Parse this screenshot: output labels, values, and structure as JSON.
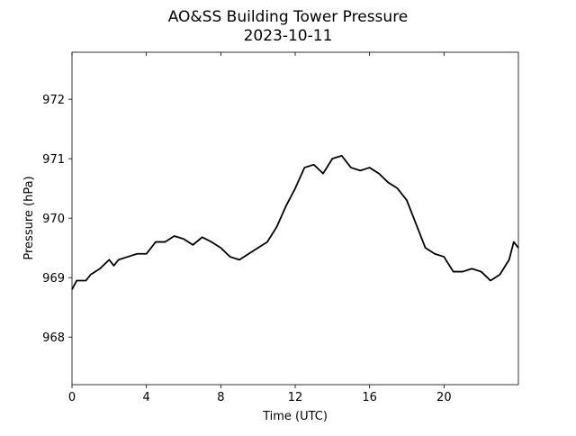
{
  "chart_data": {
    "type": "line",
    "title": "AO&SS Building Tower Pressure",
    "subtitle": "2023-10-11",
    "x_label": "Time (UTC)",
    "y_label": "Pressure (hPa)",
    "xlim": [
      0,
      24
    ],
    "xticks": [
      0,
      4,
      8,
      12,
      16,
      20
    ],
    "ylim": [
      967.2,
      972.79
    ],
    "yticks": [
      968,
      969,
      970,
      971,
      972
    ],
    "x": [
      0,
      0.25,
      0.5,
      0.75,
      1,
      1.5,
      2,
      2.25,
      2.5,
      3,
      3.5,
      4,
      4.5,
      5,
      5.5,
      6,
      6.5,
      7,
      7.5,
      8,
      8.5,
      9,
      9.5,
      10,
      10.5,
      11,
      11.5,
      12,
      12.5,
      13,
      13.5,
      14,
      14.5,
      15,
      15.5,
      16,
      16.5,
      17,
      17.5,
      18,
      18.5,
      19,
      19.5,
      20,
      20.5,
      21,
      21.5,
      22,
      22.5,
      23,
      23.5,
      23.75,
      24
    ],
    "series": [
      {
        "color": "#000000",
        "values": [
          968.8,
          968.95,
          968.95,
          968.95,
          969.05,
          969.15,
          969.3,
          969.2,
          969.3,
          969.35,
          969.4,
          969.4,
          969.6,
          969.6,
          969.7,
          969.65,
          969.55,
          969.68,
          969.6,
          969.5,
          969.35,
          969.3,
          969.4,
          969.5,
          969.6,
          969.85,
          970.2,
          970.5,
          970.85,
          970.9,
          970.75,
          971.0,
          971.05,
          970.85,
          970.8,
          970.85,
          970.75,
          970.6,
          970.5,
          970.3,
          969.9,
          969.5,
          969.4,
          969.35,
          969.1,
          969.1,
          969.15,
          969.1,
          968.95,
          969.05,
          969.3,
          969.6,
          969.5
        ]
      }
    ]
  }
}
